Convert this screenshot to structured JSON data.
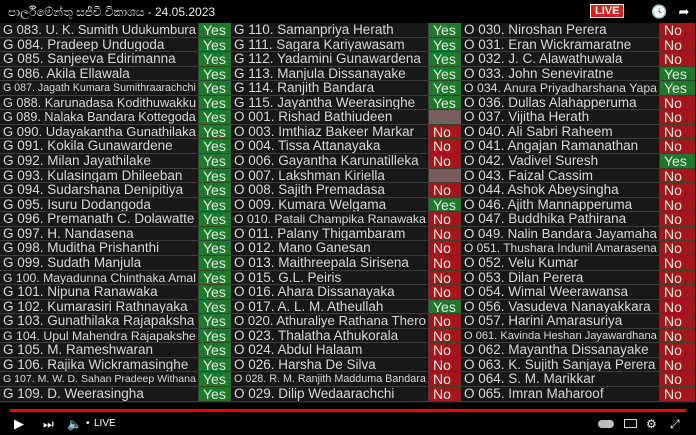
{
  "header": {
    "title": "පාර්ලිමේන්තු සජීවී විකාශය - 24.05.2023",
    "icons": [
      "clock-icon",
      "share-icon"
    ]
  },
  "colors": {
    "yes": "#1e7a2a",
    "no": "#a3171a",
    "blurred": "#7a5e5e"
  },
  "live_badge": "LIVE",
  "columns": [
    [
      {
        "name": "G 083. U. K. Sumith Udukumbura",
        "vote": "Yes"
      },
      {
        "name": "G 084. Pradeep Undugoda",
        "vote": "Yes"
      },
      {
        "name": "G 085. Sanjeeva Edirimanna",
        "vote": "Yes"
      },
      {
        "name": "G 086. Akila Ellawala",
        "vote": "Yes"
      },
      {
        "name": "G 087. Jagath Kumara Sumithraarachchi",
        "vote": "Yes"
      },
      {
        "name": "G 088. Karunadasa Kodithuwakku",
        "vote": "Yes"
      },
      {
        "name": "G 089. Nalaka Bandara Kottegoda",
        "vote": "Yes"
      },
      {
        "name": "G 090. Udayakantha Gunathilaka",
        "vote": "Yes"
      },
      {
        "name": "G 091. Kokila Gunawardene",
        "vote": "Yes"
      },
      {
        "name": "G 092. Milan Jayathilake",
        "vote": "Yes"
      },
      {
        "name": "G 093. Kulasingam Dhileeban",
        "vote": "Yes"
      },
      {
        "name": "G 094. Sudarshana Denipitiya",
        "vote": "Yes"
      },
      {
        "name": "G 095. Isuru Dodangoda",
        "vote": "Yes"
      },
      {
        "name": "G 096. Premanath C. Dolawatte",
        "vote": "Yes"
      },
      {
        "name": "G 097. H. Nandasena",
        "vote": "Yes"
      },
      {
        "name": "G 098. Muditha Prishanthi",
        "vote": "Yes"
      },
      {
        "name": "G 099. Sudath Manjula",
        "vote": "Yes"
      },
      {
        "name": "G 100. Mayadunna Chinthaka Amal",
        "vote": "Yes"
      },
      {
        "name": "G 101. Nipuna Ranawaka",
        "vote": "Yes"
      },
      {
        "name": "G 102. Kumarasiri Rathnayaka",
        "vote": "Yes"
      },
      {
        "name": "G 103. Gunathilaka Rajapaksha",
        "vote": "Yes"
      },
      {
        "name": "G 104. Upul Mahendra Rajapakshe",
        "vote": "Yes"
      },
      {
        "name": "G 105. M. Rameshwaran",
        "vote": "Yes"
      },
      {
        "name": "G 106. Rajika Wickramasinghe",
        "vote": "Yes"
      },
      {
        "name": "G 107. M. W. D. Sahan Pradeep Withana",
        "vote": "Yes"
      },
      {
        "name": "G 109. D. Weerasingha",
        "vote": "Yes"
      }
    ],
    [
      {
        "name": "G 110. Samanpriya Herath",
        "vote": "Yes"
      },
      {
        "name": "G 111. Sagara Kariyawasam",
        "vote": "Yes"
      },
      {
        "name": "G 112. Yadamini Gunawardena",
        "vote": "Yes"
      },
      {
        "name": "G 113. Manjula Dissanayake",
        "vote": "Yes"
      },
      {
        "name": "G 114. Ranjith Bandara",
        "vote": "Yes"
      },
      {
        "name": "G 115. Jayantha Weerasinghe",
        "vote": "Yes"
      },
      {
        "name": "O 001. Rishad Bathiudeen",
        "vote": ""
      },
      {
        "name": "O 003. Imthiaz Bakeer Markar",
        "vote": "No"
      },
      {
        "name": "O 004. Tissa Attanayaka",
        "vote": "No"
      },
      {
        "name": "O 006. Gayantha Karunatilleka",
        "vote": "No"
      },
      {
        "name": "O 007. Lakshman Kiriella",
        "vote": ""
      },
      {
        "name": "O 008. Sajith Premadasa",
        "vote": "No"
      },
      {
        "name": "O 009. Kumara Welgama",
        "vote": "Yes"
      },
      {
        "name": "O 010. Patali Champika Ranawaka",
        "vote": "No"
      },
      {
        "name": "O 011. Palany Thigambaram",
        "vote": "No"
      },
      {
        "name": "O 012. Mano Ganesan",
        "vote": "No"
      },
      {
        "name": "O 013. Maithreepala Sirisena",
        "vote": "No"
      },
      {
        "name": "O 015. G.L. Peiris",
        "vote": "No"
      },
      {
        "name": "O 016. Ahara Dissanayaka",
        "vote": "No"
      },
      {
        "name": "O 017. A. L. M. Atheullah",
        "vote": "Yes"
      },
      {
        "name": "O 020. Athuraliye Rathana Thero",
        "vote": "No"
      },
      {
        "name": "O 023. Thalatha Athukorala",
        "vote": "No"
      },
      {
        "name": "O 024. Abdul Halaam",
        "vote": "No"
      },
      {
        "name": "O 026. Harsha De Silva",
        "vote": "No"
      },
      {
        "name": "O 028. R. M. Ranjith Madduma Bandara",
        "vote": "No"
      },
      {
        "name": "O 029. Dilip Wedaarachchi",
        "vote": "No"
      }
    ],
    [
      {
        "name": "O 030. Niroshan Perera",
        "vote": "No"
      },
      {
        "name": "O 031. Eran Wickramaratne",
        "vote": "No"
      },
      {
        "name": "O 032. J. C. Alawathuwala",
        "vote": "No"
      },
      {
        "name": "O 033. John Seneviratne",
        "vote": "Yes"
      },
      {
        "name": "O 034. Anura Priyadharshana Yapa",
        "vote": "Yes"
      },
      {
        "name": "O 036. Dullas Alahapperuma",
        "vote": "No"
      },
      {
        "name": "O 037. Vijitha Herath",
        "vote": "No"
      },
      {
        "name": "O 040. Ali Sabri Raheem",
        "vote": "No"
      },
      {
        "name": "O 041. Angajan Ramanathan",
        "vote": "No"
      },
      {
        "name": "O 042. Vadivel Suresh",
        "vote": "Yes"
      },
      {
        "name": "O 043. Faizal Cassim",
        "vote": "No"
      },
      {
        "name": "O 044. Ashok Abeysingha",
        "vote": "No"
      },
      {
        "name": "O 046. Ajith Mannapperuma",
        "vote": "No"
      },
      {
        "name": "O 047. Buddhika Pathirana",
        "vote": "No"
      },
      {
        "name": "O 049. Nalin Bandara Jayamaha",
        "vote": "No"
      },
      {
        "name": "O 051. Thushara Indunil Amarasena",
        "vote": "No"
      },
      {
        "name": "O 052. Velu Kumar",
        "vote": "No"
      },
      {
        "name": "O 053. Dilan Perera",
        "vote": "No"
      },
      {
        "name": "O 054. Wimal Weerawansa",
        "vote": "No"
      },
      {
        "name": "O 056. Vasudeva Nanayakkara",
        "vote": "No"
      },
      {
        "name": "O 057. Harini Amarasuriya",
        "vote": "No"
      },
      {
        "name": "O 061. Kavinda Heshan Jayawardhana",
        "vote": "No"
      },
      {
        "name": "O 062. Mayantha Dissanayake",
        "vote": "No"
      },
      {
        "name": "O 063. K. Sujith Sanjaya Perera",
        "vote": "No"
      },
      {
        "name": "O 064. S. M. Marikkar",
        "vote": "No"
      },
      {
        "name": "O 065. Imran Maharoof",
        "vote": "No"
      }
    ]
  ],
  "player": {
    "live_label": "LIVE",
    "progress_percent": 100,
    "icons": [
      "play-icon",
      "next-icon",
      "volume-icon",
      "autoplay-toggle-icon",
      "subtitles-icon",
      "settings-icon",
      "exit-fullscreen-icon"
    ]
  }
}
